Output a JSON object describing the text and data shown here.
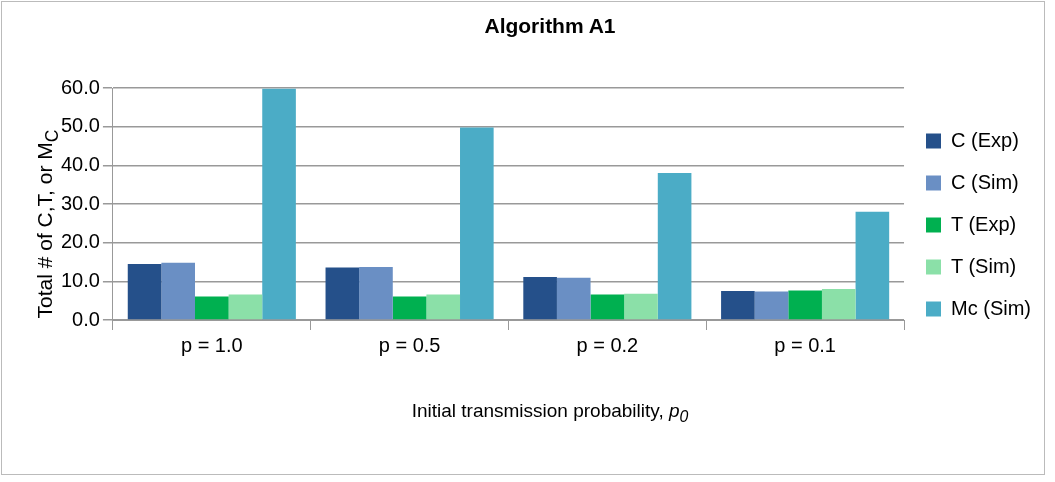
{
  "chart_data": {
    "type": "bar",
    "title": "Algorithm A1",
    "xlabel": "Initial transmission probability, p$_{0}$",
    "ylabel": "Total # of C,T, or M$_{C}$",
    "categories": [
      "p = 1.0",
      "p = 0.5",
      "p = 0.2",
      "p = 0.1"
    ],
    "series": [
      {
        "name": "C (Exp)",
        "color": "#25508a",
        "values": [
          14.5,
          13.6,
          11.1,
          7.5
        ]
      },
      {
        "name": "C (Sim)",
        "color": "#6a8fc4",
        "values": [
          14.8,
          13.7,
          10.9,
          7.4
        ]
      },
      {
        "name": "T (Exp)",
        "color": "#00b050",
        "values": [
          6.1,
          6.1,
          6.6,
          7.6
        ]
      },
      {
        "name": "T (Sim)",
        "color": "#8be0a8",
        "values": [
          6.6,
          6.6,
          6.8,
          8.0
        ]
      },
      {
        "name": "Mc (Sim)",
        "color": "#4bacc6",
        "values": [
          59.8,
          49.8,
          38.0,
          28.0
        ]
      }
    ],
    "ylim": [
      0,
      60
    ],
    "yticks": [
      {
        "value": 0,
        "label": "0.0"
      },
      {
        "value": 10,
        "label": "10.0"
      },
      {
        "value": 20,
        "label": "20.0"
      },
      {
        "value": 30,
        "label": "30.0"
      },
      {
        "value": 40,
        "label": "40.0"
      },
      {
        "value": 50,
        "label": "50.0"
      },
      {
        "value": 60,
        "label": "60.0"
      }
    ],
    "grid": "y",
    "legend": "right"
  }
}
